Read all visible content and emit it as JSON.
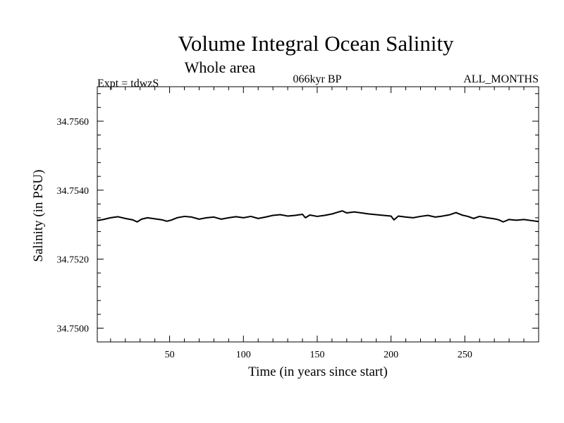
{
  "chart_data": {
    "type": "line",
    "title": "Volume Integral Ocean Salinity",
    "subtitle": "Whole area",
    "annotations": {
      "left": "Expt = tdwzS",
      "center": "066kyr BP",
      "right": "ALL_MONTHS"
    },
    "xlabel": "Time (in years since start)",
    "ylabel": "Salinity (in PSU)",
    "xlim": [
      1,
      300
    ],
    "ylim": [
      34.7496,
      34.757
    ],
    "x_ticks": [
      50,
      100,
      150,
      200,
      250
    ],
    "y_ticks": [
      "34.7500",
      "34.7520",
      "34.7540",
      "34.7560"
    ],
    "grid": false,
    "series": [
      {
        "color": "#000000",
        "x": [
          1,
          5,
          10,
          15,
          20,
          25,
          28,
          31,
          35,
          40,
          45,
          48,
          51,
          55,
          60,
          65,
          70,
          75,
          80,
          85,
          90,
          95,
          100,
          105,
          110,
          115,
          120,
          125,
          130,
          135,
          140,
          142,
          145,
          150,
          155,
          160,
          163,
          167,
          170,
          175,
          180,
          185,
          190,
          195,
          200,
          202,
          205,
          210,
          215,
          220,
          225,
          230,
          235,
          240,
          244,
          248,
          252,
          256,
          260,
          265,
          270,
          273,
          276,
          280,
          285,
          290,
          295,
          300
        ],
        "y": [
          34.75312,
          34.75315,
          34.7532,
          34.75323,
          34.75318,
          34.75314,
          34.75308,
          34.75316,
          34.7532,
          34.75317,
          34.75314,
          34.7531,
          34.75313,
          34.7532,
          34.75324,
          34.75322,
          34.75316,
          34.7532,
          34.75322,
          34.75316,
          34.7532,
          34.75323,
          34.7532,
          34.75324,
          34.75318,
          34.75322,
          34.75327,
          34.75329,
          34.75325,
          34.75327,
          34.7533,
          34.7532,
          34.75328,
          34.75324,
          34.75327,
          34.75331,
          34.75335,
          34.7534,
          34.75334,
          34.75337,
          34.75334,
          34.75331,
          34.75329,
          34.75327,
          34.75325,
          34.75314,
          34.75325,
          34.75322,
          34.7532,
          34.75324,
          34.75327,
          34.75322,
          34.75325,
          34.75329,
          34.75335,
          34.75328,
          34.75324,
          34.75318,
          34.75324,
          34.7532,
          34.75317,
          34.75314,
          34.75308,
          34.75315,
          34.75313,
          34.75315,
          34.75312,
          34.75309
        ]
      }
    ]
  }
}
